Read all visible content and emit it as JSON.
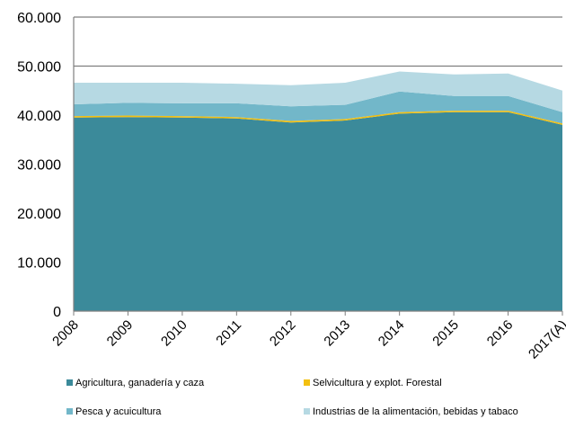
{
  "chart_data": {
    "type": "area",
    "stacked": true,
    "categories": [
      "2008",
      "2009",
      "2010",
      "2011",
      "2012",
      "2013",
      "2014",
      "2015",
      "2016",
      "2017(A)"
    ],
    "ylim": [
      0,
      60000
    ],
    "yticks": [
      {
        "value": 0,
        "label": "0"
      },
      {
        "value": 10000,
        "label": "10.000"
      },
      {
        "value": 20000,
        "label": "20.000"
      },
      {
        "value": 30000,
        "label": "30.000"
      },
      {
        "value": 40000,
        "label": "40.000"
      },
      {
        "value": 50000,
        "label": "50.000"
      },
      {
        "value": 60000,
        "label": "60.000"
      }
    ],
    "grid": "horizontal",
    "legend_position": "bottom",
    "series": [
      {
        "name": "Agricultura, ganadería y caza",
        "color": "#3b8a9a",
        "values": [
          39500,
          39600,
          39500,
          39300,
          38500,
          38900,
          40300,
          40600,
          40600,
          38000
        ]
      },
      {
        "name": "Selvicultura y explot. Forestal",
        "color": "#f3c010",
        "values": [
          300,
          300,
          300,
          300,
          300,
          300,
          300,
          300,
          300,
          300
        ]
      },
      {
        "name": "Pesca y acuicultura",
        "color": "#72b7c9",
        "values": [
          2400,
          2600,
          2600,
          2800,
          3000,
          2900,
          4200,
          3000,
          3000,
          2300
        ]
      },
      {
        "name": "Industrias de la alimentación, bebidas y tabaco",
        "color": "#b6d9e3",
        "values": [
          4400,
          4100,
          4200,
          4000,
          4300,
          4500,
          4100,
          4400,
          4600,
          4400
        ]
      }
    ]
  }
}
